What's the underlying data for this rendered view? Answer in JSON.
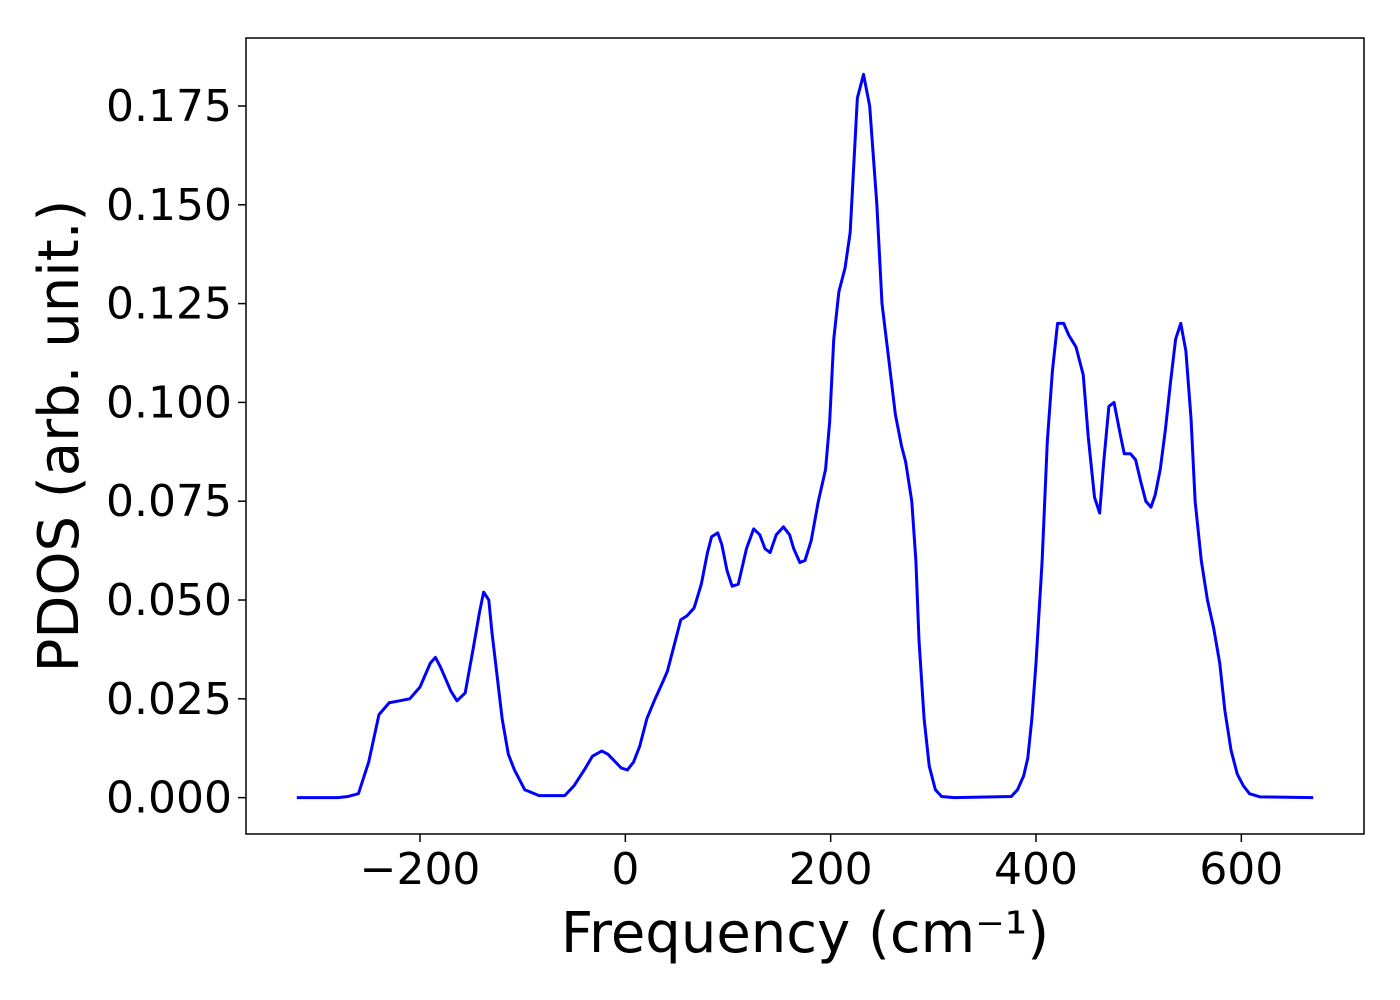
{
  "chart_data": {
    "type": "line",
    "x_label": "Frequency (cm⁻¹)",
    "y_label": "PDOS (arb. unit.)",
    "x": [
      -320,
      -280,
      -270,
      -260,
      -250,
      -240,
      -230,
      -220,
      -210,
      -200,
      -190,
      -185,
      -180,
      -170,
      -164,
      -156,
      -148,
      -142,
      -138,
      -133,
      -130,
      -120,
      -114,
      -108,
      -98,
      -84,
      -59,
      -50,
      -40,
      -32,
      -23,
      -17,
      -4,
      2,
      8,
      14,
      21,
      29,
      36,
      41,
      48,
      54,
      60,
      67,
      74,
      80,
      84,
      90,
      94,
      99,
      104,
      110,
      118,
      125,
      131,
      136,
      141,
      147,
      154,
      160,
      164,
      170,
      175,
      181,
      188,
      195,
      199,
      203,
      208,
      214,
      219,
      226,
      232,
      238,
      245,
      250,
      257,
      263,
      269,
      273,
      279,
      283,
      286,
      291,
      296,
      302,
      308,
      320,
      376,
      382,
      388,
      392,
      396,
      400,
      406,
      411,
      416,
      421,
      427,
      432,
      439,
      446,
      451,
      457,
      462,
      466,
      471,
      476,
      482,
      486,
      492,
      497,
      502,
      507,
      512,
      516,
      521,
      526,
      531,
      536,
      541,
      546,
      551,
      555,
      561,
      567,
      573,
      579,
      584,
      590,
      596,
      602,
      608,
      618,
      670
    ],
    "series": [
      {
        "color": "#0000ff",
        "values": [
          0,
          0,
          0.0003,
          0.001,
          0.009,
          0.021,
          0.024,
          0.0245,
          0.025,
          0.028,
          0.034,
          0.0355,
          0.033,
          0.027,
          0.0245,
          0.0265,
          0.038,
          0.047,
          0.052,
          0.05,
          0.042,
          0.02,
          0.011,
          0.007,
          0.002,
          0.0005,
          0.0005,
          0.003,
          0.007,
          0.0105,
          0.0118,
          0.011,
          0.0075,
          0.007,
          0.009,
          0.013,
          0.02,
          0.025,
          0.029,
          0.032,
          0.039,
          0.045,
          0.046,
          0.048,
          0.054,
          0.062,
          0.066,
          0.067,
          0.064,
          0.0575,
          0.0535,
          0.054,
          0.063,
          0.068,
          0.0665,
          0.063,
          0.062,
          0.0665,
          0.0685,
          0.0665,
          0.063,
          0.0595,
          0.06,
          0.065,
          0.075,
          0.083,
          0.095,
          0.116,
          0.128,
          0.134,
          0.143,
          0.177,
          0.183,
          0.175,
          0.15,
          0.125,
          0.11,
          0.097,
          0.089,
          0.085,
          0.075,
          0.06,
          0.04,
          0.02,
          0.008,
          0.002,
          0.0003,
          0,
          0.0003,
          0.002,
          0.0055,
          0.01,
          0.02,
          0.034,
          0.06,
          0.09,
          0.108,
          0.12,
          0.12,
          0.117,
          0.114,
          0.107,
          0.091,
          0.076,
          0.072,
          0.085,
          0.099,
          0.1,
          0.092,
          0.087,
          0.087,
          0.0855,
          0.08,
          0.075,
          0.0735,
          0.0765,
          0.083,
          0.093,
          0.105,
          0.116,
          0.12,
          0.113,
          0.096,
          0.075,
          0.06,
          0.05,
          0.043,
          0.034,
          0.022,
          0.012,
          0.006,
          0.003,
          0.001,
          0.0002,
          0
        ]
      }
    ],
    "xlim": [
      -369.5,
      719.5
    ],
    "ylim": [
      -0.0092,
      0.1922
    ],
    "xticks": [
      {
        "value": -200,
        "label": "−200"
      },
      0,
      200,
      400,
      600
    ],
    "yticks": [
      {
        "value": 0,
        "label": "0.000"
      },
      {
        "value": 0.025,
        "label": "0.025"
      },
      {
        "value": 0.05,
        "label": "0.050"
      },
      {
        "value": 0.075,
        "label": "0.075"
      },
      {
        "value": 0.1,
        "label": "0.100"
      },
      {
        "value": 0.125,
        "label": "0.125"
      },
      {
        "value": 0.15,
        "label": "0.150"
      },
      {
        "value": 0.175,
        "label": "0.175"
      }
    ],
    "grid": false
  }
}
